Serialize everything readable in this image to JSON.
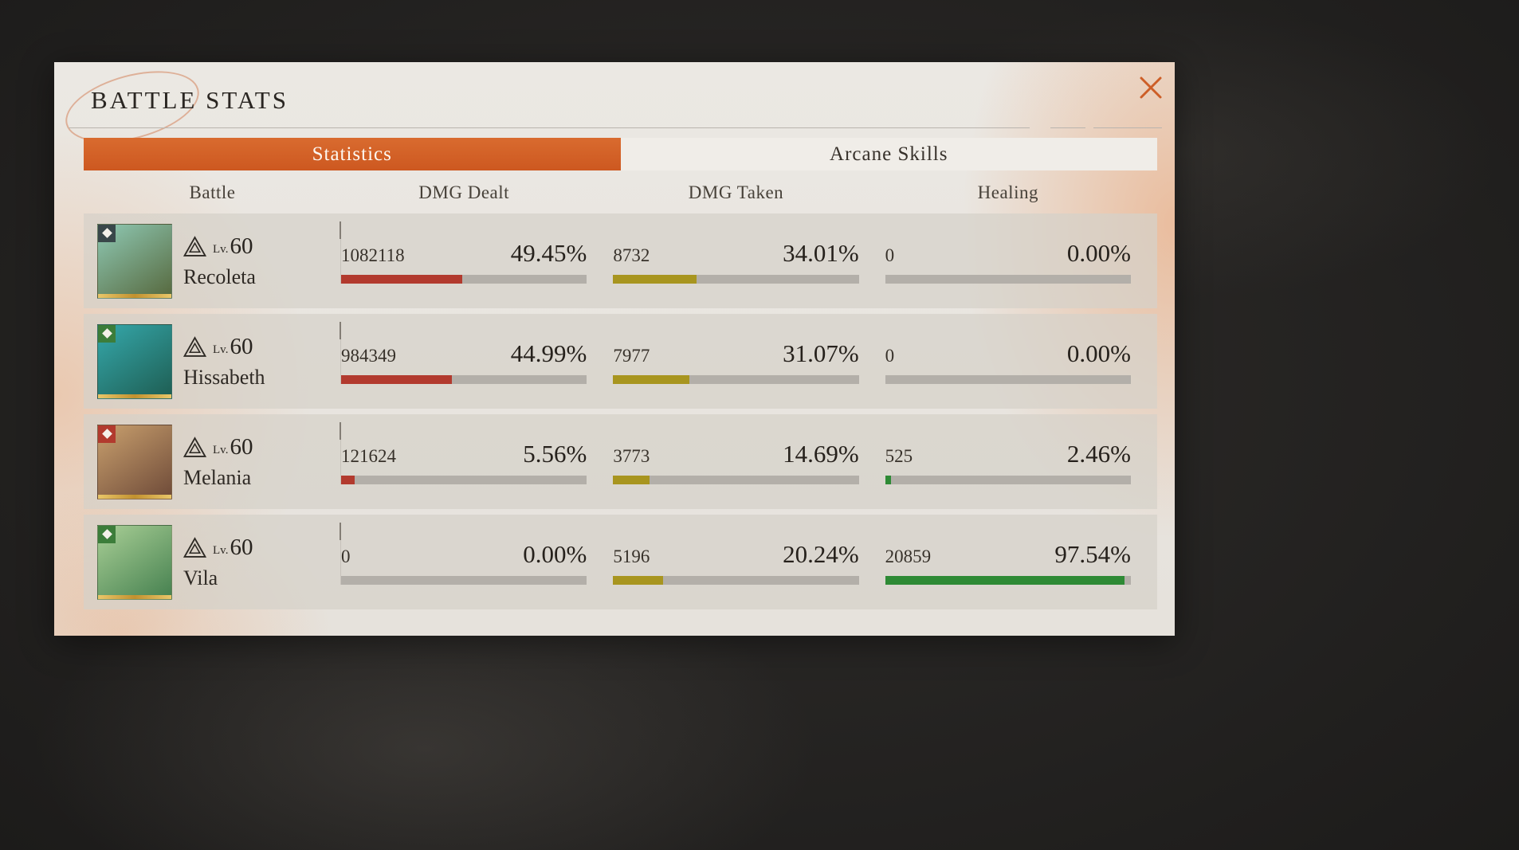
{
  "window": {
    "title": "BATTLE STATS"
  },
  "tabs": {
    "statistics": "Statistics",
    "arcane_skills": "Arcane Skills"
  },
  "columns": {
    "battle": "Battle",
    "dmg_dealt": "DMG Dealt",
    "dmg_taken": "DMG Taken",
    "healing": "Healing"
  },
  "colors": {
    "accent": "#cd5e27",
    "bar-track": "#b3afa9",
    "bar-dealt": "#b23a2e",
    "bar-taken": "#a8951f",
    "bar-heal": "#2e8a35"
  },
  "rows": [
    {
      "name": "Recoleta",
      "lv_label": "Lv.",
      "level": "60",
      "avatar": {
        "bg1": "#8fc9b4",
        "bg2": "#56683d",
        "badge": "#39474a"
      },
      "dmg_dealt": {
        "value": "1082118",
        "pct": "49.45%",
        "pct_num": 49.45
      },
      "dmg_taken": {
        "value": "8732",
        "pct": "34.01%",
        "pct_num": 34.01
      },
      "healing": {
        "value": "0",
        "pct": "0.00%",
        "pct_num": 0
      }
    },
    {
      "name": "Hissabeth",
      "lv_label": "Lv.",
      "level": "60",
      "avatar": {
        "bg1": "#35a8ab",
        "bg2": "#1e5d52",
        "badge": "#3c7d3a"
      },
      "dmg_dealt": {
        "value": "984349",
        "pct": "44.99%",
        "pct_num": 44.99
      },
      "dmg_taken": {
        "value": "7977",
        "pct": "31.07%",
        "pct_num": 31.07
      },
      "healing": {
        "value": "0",
        "pct": "0.00%",
        "pct_num": 0
      }
    },
    {
      "name": "Melania",
      "lv_label": "Lv.",
      "level": "60",
      "avatar": {
        "bg1": "#c9a06e",
        "bg2": "#6e4a38",
        "badge": "#b23a2e"
      },
      "dmg_dealt": {
        "value": "121624",
        "pct": "5.56%",
        "pct_num": 5.56
      },
      "dmg_taken": {
        "value": "3773",
        "pct": "14.69%",
        "pct_num": 14.69
      },
      "healing": {
        "value": "525",
        "pct": "2.46%",
        "pct_num": 2.46
      }
    },
    {
      "name": "Vila",
      "lv_label": "Lv.",
      "level": "60",
      "avatar": {
        "bg1": "#a9cf96",
        "bg2": "#45804f",
        "badge": "#3c7d3a"
      },
      "dmg_dealt": {
        "value": "0",
        "pct": "0.00%",
        "pct_num": 0
      },
      "dmg_taken": {
        "value": "5196",
        "pct": "20.24%",
        "pct_num": 20.24
      },
      "healing": {
        "value": "20859",
        "pct": "97.54%",
        "pct_num": 97.54
      }
    }
  ]
}
